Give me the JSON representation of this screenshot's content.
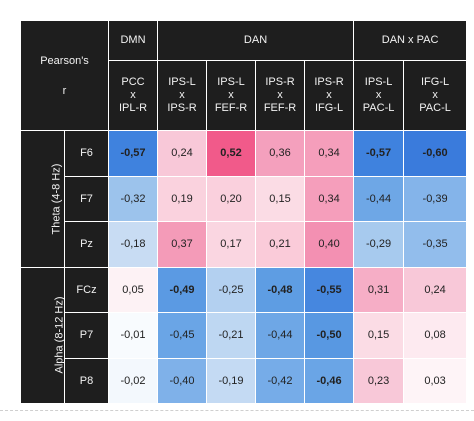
{
  "corner_lines": [
    "Pearson's",
    "r"
  ],
  "groups": [
    {
      "label": "DMN",
      "span": 1
    },
    {
      "label": "DAN",
      "span": 4
    },
    {
      "label": "DAN x PAC",
      "span": 2
    }
  ],
  "columns": [
    [
      "PCC",
      "x",
      "IPL-R"
    ],
    [
      "IPS-L",
      "x",
      "IPS-R"
    ],
    [
      "IPS-L",
      "x",
      "FEF-R"
    ],
    [
      "IPS-R",
      "x",
      "FEF-R"
    ],
    [
      "IPS-R",
      "x",
      "IFG-L"
    ],
    [
      "IPS-L",
      "x",
      "PAC-L"
    ],
    [
      "IFG-L",
      "x",
      "PAC-L"
    ]
  ],
  "bands": [
    {
      "label": "Theta (4-8 Hz)",
      "rows": [
        {
          "label": "F6",
          "values": [
            "-0,57",
            "0,24",
            "0,52",
            "0,36",
            "0,34",
            "-0,57",
            "-0,60"
          ],
          "bold": [
            true,
            false,
            true,
            false,
            false,
            true,
            true
          ],
          "colors": [
            "#3f82de",
            "#f8c8d8",
            "#f15a8a",
            "#f4a0bd",
            "#f59ebb",
            "#3f82de",
            "#3a7bdc"
          ]
        },
        {
          "label": "F7",
          "values": [
            "-0,32",
            "0,19",
            "0,20",
            "0,15",
            "0,34",
            "-0,44",
            "-0,39"
          ],
          "bold": [
            false,
            false,
            false,
            false,
            false,
            false,
            false
          ],
          "colors": [
            "#9cc3ec",
            "#fad2de",
            "#fad0dd",
            "#fbdce5",
            "#f59ebb",
            "#6ea7e6",
            "#84b4ea"
          ]
        },
        {
          "label": "Pz",
          "values": [
            "-0,18",
            "0,37",
            "0,17",
            "0,21",
            "0,40",
            "-0,29",
            "-0,35"
          ],
          "bold": [
            false,
            false,
            false,
            false,
            false,
            false,
            false
          ],
          "colors": [
            "#c8dcf3",
            "#f49bb8",
            "#fad6e1",
            "#facbd9",
            "#f390b2",
            "#a7caee",
            "#92bdec"
          ]
        }
      ]
    },
    {
      "label": "Alpha (8-12 Hz)",
      "rows": [
        {
          "label": "FCz",
          "values": [
            "0,05",
            "-0,49",
            "-0,25",
            "-0,48",
            "-0,55",
            "0,31",
            "0,24"
          ],
          "bold": [
            false,
            true,
            false,
            true,
            true,
            false,
            false
          ],
          "colors": [
            "#fdf2f5",
            "#5b9ae3",
            "#b3d0f0",
            "#5e9de3",
            "#4687df",
            "#f6aec6",
            "#f8c8d8"
          ]
        },
        {
          "label": "P7",
          "values": [
            "-0,01",
            "-0,45",
            "-0,21",
            "-0,44",
            "-0,50",
            "0,15",
            "0,08"
          ],
          "bold": [
            false,
            false,
            false,
            false,
            true,
            false,
            false
          ],
          "colors": [
            "#f8fbfe",
            "#6aa5e6",
            "#bed7f2",
            "#6ea7e6",
            "#5898e2",
            "#fbdce5",
            "#fdeaf0"
          ]
        },
        {
          "label": "P8",
          "values": [
            "-0,02",
            "-0,40",
            "-0,19",
            "-0,42",
            "-0,46",
            "0,23",
            "0,03"
          ],
          "bold": [
            false,
            false,
            false,
            false,
            true,
            false,
            false
          ],
          "colors": [
            "#f3f8fd",
            "#7fb1e9",
            "#c4daf3",
            "#76ace8",
            "#6aa5e6",
            "#f8c8d8",
            "#fef4f7"
          ]
        }
      ]
    }
  ]
}
